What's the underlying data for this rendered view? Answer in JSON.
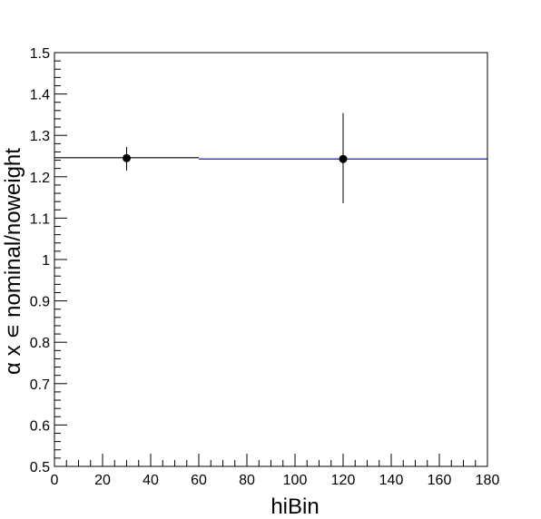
{
  "chart_data": {
    "type": "scatter",
    "title": "",
    "xlabel": "hiBin",
    "ylabel": "α x ∊ nominal/noweight",
    "xlim": [
      0,
      180
    ],
    "ylim": [
      0.5,
      1.5
    ],
    "x_ticks": [
      "0",
      "20",
      "40",
      "60",
      "80",
      "100",
      "120",
      "140",
      "160",
      "180"
    ],
    "y_ticks": [
      "0.5",
      "0.6",
      "0.7",
      "0.8",
      "0.9",
      "1",
      "1.1",
      "1.2",
      "1.3",
      "1.4",
      "1.5"
    ],
    "grid": false,
    "points": [
      {
        "x": 30,
        "y": 1.245,
        "y_err_low": 0.03,
        "y_err_high": 0.027
      },
      {
        "x": 120,
        "y": 1.243,
        "y_err_low": 0.107,
        "y_err_high": 0.111
      }
    ],
    "fit_segments": [
      {
        "x": [
          0,
          60
        ],
        "y": [
          1.246,
          1.246
        ],
        "color": "#000000"
      },
      {
        "x": [
          60,
          180
        ],
        "y": [
          1.243,
          1.243
        ],
        "color": "#0000aa"
      }
    ],
    "colors": {
      "marker": "#000000",
      "fit": "#0000aa",
      "axis": "#000000"
    }
  }
}
